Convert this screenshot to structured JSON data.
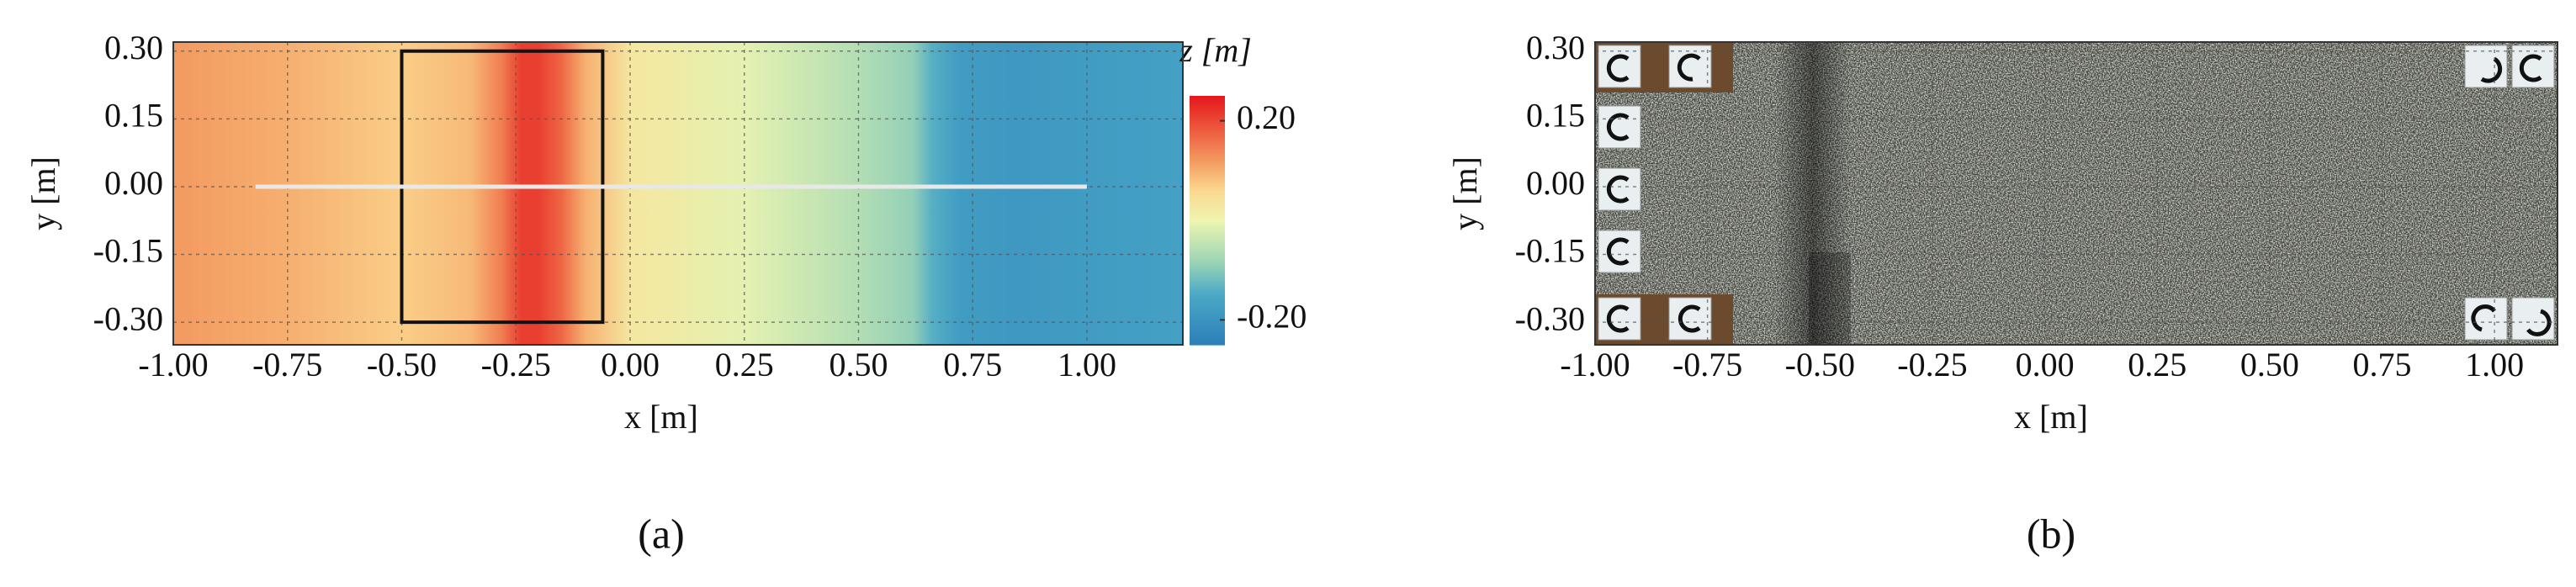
{
  "chart_data": [
    {
      "type": "heatmap",
      "label": "(a)",
      "xlabel": "x [m]",
      "ylabel": "y [m]",
      "xlim": [
        -1.0,
        1.21
      ],
      "ylim": [
        -0.35,
        0.32
      ],
      "xticks": [
        {
          "value": -1,
          "label": "-1.00"
        },
        {
          "value": -0.75,
          "label": "-0.75"
        },
        {
          "value": -0.5,
          "label": "-0.50"
        },
        {
          "value": -0.25,
          "label": "-0.25"
        },
        {
          "value": 0,
          "label": "0.00"
        },
        {
          "value": 0.25,
          "label": "0.25"
        },
        {
          "value": 0.5,
          "label": "0.50"
        },
        {
          "value": 0.75,
          "label": "0.75"
        },
        {
          "value": 1,
          "label": "1.00"
        }
      ],
      "yticks": [
        {
          "value": 0.3,
          "label": "0.30"
        },
        {
          "value": 0.15,
          "label": "0.15"
        },
        {
          "value": 0,
          "label": "0.00"
        },
        {
          "value": -0.15,
          "label": "-0.15"
        },
        {
          "value": -0.3,
          "label": "-0.30"
        }
      ],
      "grid": true,
      "profile": {
        "x": [
          -1.0,
          -0.75,
          -0.5,
          -0.35,
          -0.28,
          -0.24,
          -0.2,
          -0.15,
          -0.1,
          0,
          0.25,
          0.5,
          0.62,
          0.66,
          0.72,
          0.85,
          1.0,
          1.21
        ],
        "z": [
          0.12,
          0.1,
          0.07,
          0.09,
          0.15,
          0.21,
          0.21,
          0.17,
          0.1,
          0.03,
          -0.01,
          -0.06,
          -0.09,
          -0.14,
          -0.18,
          -0.19,
          -0.18,
          -0.17
        ]
      },
      "colorbar": {
        "label": "z [m]",
        "lim": [
          -0.25,
          0.25
        ],
        "ticks": [
          {
            "value": 0.2,
            "label": "0.20"
          },
          {
            "value": -0.2,
            "label": "-0.20"
          }
        ],
        "stops": [
          {
            "value": -0.25,
            "color": "#2c7fb8"
          },
          {
            "value": -0.15,
            "color": "#4aa8c7"
          },
          {
            "value": -0.08,
            "color": "#9fd6b5"
          },
          {
            "value": 0,
            "color": "#eef5b0"
          },
          {
            "value": 0.06,
            "color": "#fbd890"
          },
          {
            "value": 0.12,
            "color": "#f39a60"
          },
          {
            "value": 0.25,
            "color": "#e5161b"
          }
        ]
      },
      "box": {
        "x": [
          -0.5,
          -0.06
        ],
        "y": [
          -0.3,
          0.3
        ]
      },
      "profile_line": {
        "x": [
          -0.82,
          1.0
        ],
        "y": 0
      }
    },
    {
      "type": "image",
      "label": "(b)",
      "xlabel": "x [m]",
      "ylabel": "y [m]",
      "xlim": [
        -1.0,
        1.14
      ],
      "ylim": [
        -0.35,
        0.32
      ],
      "xticks": [
        {
          "value": -1,
          "label": "-1.00"
        },
        {
          "value": -0.75,
          "label": "-0.75"
        },
        {
          "value": -0.5,
          "label": "-0.50"
        },
        {
          "value": -0.25,
          "label": "-0.25"
        },
        {
          "value": 0,
          "label": "0.00"
        },
        {
          "value": 0.25,
          "label": "0.25"
        },
        {
          "value": 0.5,
          "label": "0.50"
        },
        {
          "value": 0.75,
          "label": "0.75"
        },
        {
          "value": 1,
          "label": "1.00"
        }
      ],
      "yticks": [
        {
          "value": 0.3,
          "label": "0.30"
        },
        {
          "value": 0.15,
          "label": "0.15"
        },
        {
          "value": 0,
          "label": "0.00"
        },
        {
          "value": -0.15,
          "label": "-0.15"
        },
        {
          "value": -0.3,
          "label": "-0.30"
        }
      ],
      "grid": true
    }
  ]
}
